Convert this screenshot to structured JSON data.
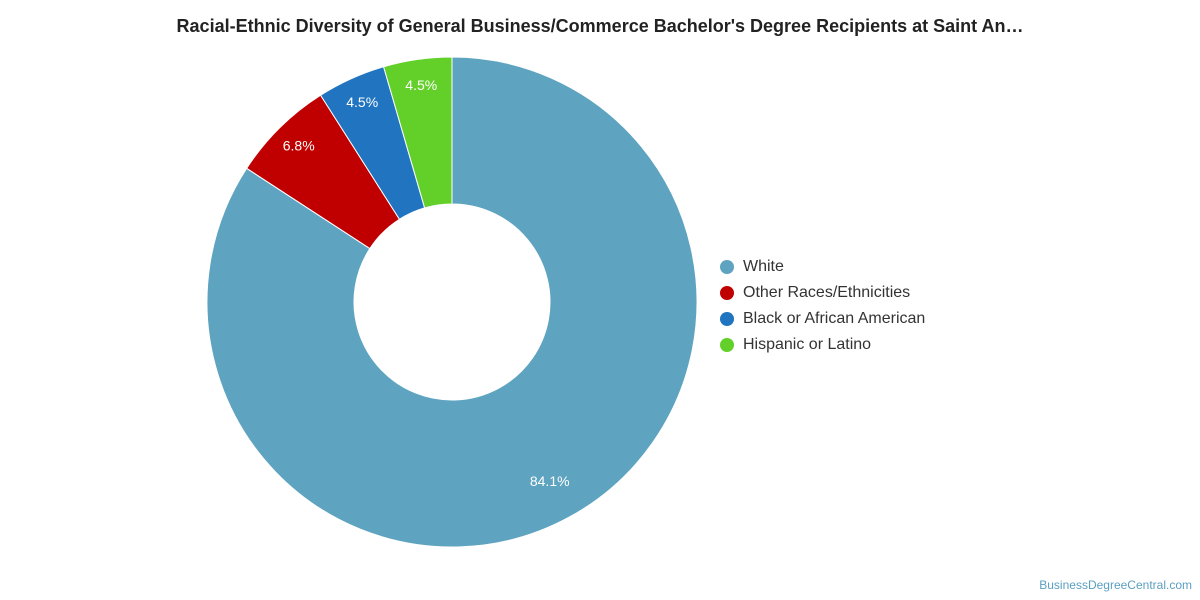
{
  "title": "Racial-Ethnic Diversity of General Business/Commerce Bachelor's Degree Recipients at Saint An…",
  "watermark": "BusinessDegreeCentral.com",
  "chart_data": {
    "type": "pie",
    "variant": "donut",
    "title": "Racial-Ethnic Diversity of General Business/Commerce Bachelor's Degree Recipients at Saint An…",
    "legend_position": "right",
    "series": [
      {
        "name": "White",
        "value": 84.1,
        "label": "84.1%",
        "color": "#5ea3c0"
      },
      {
        "name": "Other Races/Ethnicities",
        "value": 6.8,
        "label": "6.8%",
        "color": "#c00000"
      },
      {
        "name": "Black or African American",
        "value": 4.5,
        "label": "4.5%",
        "color": "#2074c0"
      },
      {
        "name": "Hispanic or Latino",
        "value": 4.5,
        "label": "4.5%",
        "color": "#63d02a"
      }
    ]
  }
}
